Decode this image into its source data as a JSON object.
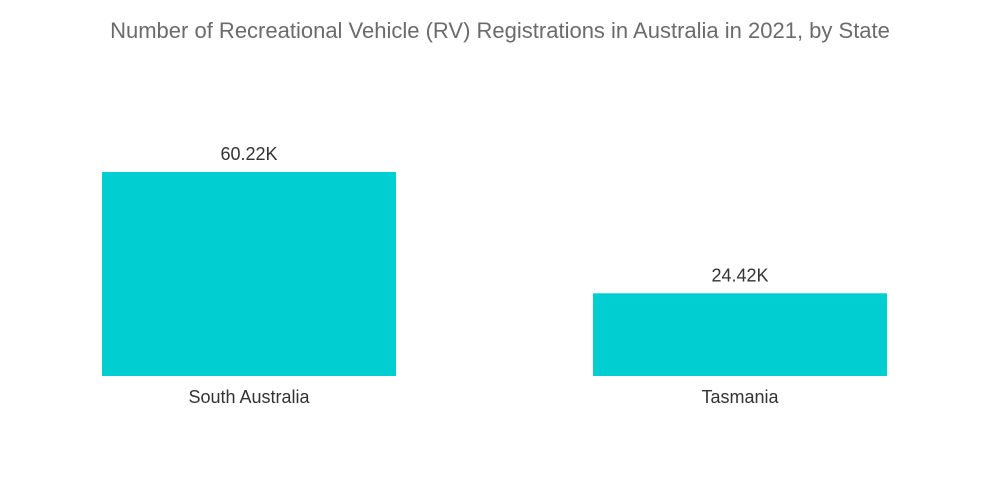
{
  "chart_data": {
    "type": "bar",
    "title": "Number of Recreational Vehicle (RV) Registrations in Australia in 2021, by State",
    "categories": [
      "South Australia",
      "Tasmania"
    ],
    "values": [
      60.22,
      24.42
    ],
    "value_labels": [
      "60.22K",
      "24.42K"
    ],
    "unit": "K",
    "xlabel": "",
    "ylabel": "",
    "ylim": [
      0,
      60.22
    ],
    "grid": false,
    "legend": "none",
    "bar_color": "#00ced1"
  }
}
